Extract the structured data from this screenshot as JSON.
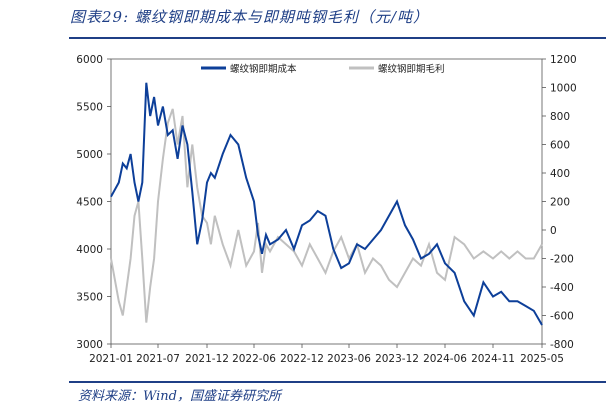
{
  "title": "图表29:  螺纹钢即期成本与即期吨钢毛利（元/吨）",
  "source": "资料来源：Wind，国盛证券研究所",
  "colors": {
    "accent": "#1f3f86",
    "cost": "#0d3f99",
    "margin": "#c0c0c0"
  },
  "chart_data": {
    "type": "line",
    "x_tick_labels": [
      "2021-01",
      "2021-07",
      "2021-12",
      "2022-06",
      "2022-12",
      "2023-06",
      "2023-12",
      "2024-06",
      "2024-11",
      "2025-05"
    ],
    "y_left": {
      "min": 3000,
      "max": 6000,
      "ticks": [
        3000,
        3500,
        4000,
        4500,
        5000,
        5500,
        6000
      ]
    },
    "y_right": {
      "min": -800,
      "max": 1200,
      "ticks": [
        -800,
        -600,
        -400,
        -200,
        0,
        200,
        400,
        600,
        800,
        1000,
        1200
      ]
    },
    "legend_position": "top",
    "series": [
      {
        "name": "螺纹钢即期成本",
        "axis": "left",
        "color": "#0d3f99",
        "points": [
          [
            "2021-01",
            4550
          ],
          [
            "2021-02",
            4700
          ],
          [
            "2021-02",
            4900
          ],
          [
            "2021-03",
            4850
          ],
          [
            "2021-03",
            5000
          ],
          [
            "2021-04",
            4700
          ],
          [
            "2021-04",
            4500
          ],
          [
            "2021-05",
            4700
          ],
          [
            "2021-05",
            5750
          ],
          [
            "2021-06",
            5400
          ],
          [
            "2021-06",
            5600
          ],
          [
            "2021-07",
            5300
          ],
          [
            "2021-07",
            5500
          ],
          [
            "2021-08",
            5200
          ],
          [
            "2021-08",
            5250
          ],
          [
            "2021-09",
            4950
          ],
          [
            "2021-09",
            5300
          ],
          [
            "2021-10",
            5100
          ],
          [
            "2021-10",
            4600
          ],
          [
            "2021-11",
            4050
          ],
          [
            "2021-11",
            4300
          ],
          [
            "2021-12",
            4700
          ],
          [
            "2021-12",
            4800
          ],
          [
            "2022-01",
            4750
          ],
          [
            "2022-02",
            5000
          ],
          [
            "2022-03",
            5200
          ],
          [
            "2022-04",
            5100
          ],
          [
            "2022-05",
            4750
          ],
          [
            "2022-06",
            4500
          ],
          [
            "2022-06",
            4150
          ],
          [
            "2022-07",
            3950
          ],
          [
            "2022-07",
            4150
          ],
          [
            "2022-08",
            4050
          ],
          [
            "2022-09",
            4100
          ],
          [
            "2022-10",
            4200
          ],
          [
            "2022-11",
            4000
          ],
          [
            "2022-12",
            4250
          ],
          [
            "2023-01",
            4300
          ],
          [
            "2023-02",
            4400
          ],
          [
            "2023-03",
            4350
          ],
          [
            "2023-04",
            4000
          ],
          [
            "2023-05",
            3800
          ],
          [
            "2023-06",
            3850
          ],
          [
            "2023-07",
            4050
          ],
          [
            "2023-08",
            4000
          ],
          [
            "2023-09",
            4100
          ],
          [
            "2023-10",
            4200
          ],
          [
            "2023-11",
            4350
          ],
          [
            "2023-12",
            4500
          ],
          [
            "2024-01",
            4250
          ],
          [
            "2024-02",
            4100
          ],
          [
            "2024-03",
            3900
          ],
          [
            "2024-04",
            3950
          ],
          [
            "2024-05",
            4050
          ],
          [
            "2024-06",
            3850
          ],
          [
            "2024-07",
            3750
          ],
          [
            "2024-08",
            3450
          ],
          [
            "2024-09",
            3300
          ],
          [
            "2024-10",
            3650
          ],
          [
            "2024-11",
            3500
          ],
          [
            "2024-12",
            3550
          ],
          [
            "2025-01",
            3450
          ],
          [
            "2025-02",
            3450
          ],
          [
            "2025-03",
            3400
          ],
          [
            "2025-04",
            3350
          ],
          [
            "2025-05",
            3200
          ]
        ]
      },
      {
        "name": "螺纹钢即期毛利",
        "axis": "right",
        "color": "#c0c0c0",
        "points": [
          [
            "2021-01",
            -200
          ],
          [
            "2021-02",
            -500
          ],
          [
            "2021-02",
            -600
          ],
          [
            "2021-03",
            -400
          ],
          [
            "2021-03",
            -200
          ],
          [
            "2021-04",
            100
          ],
          [
            "2021-04",
            200
          ],
          [
            "2021-05",
            -200
          ],
          [
            "2021-05",
            -650
          ],
          [
            "2021-06",
            -400
          ],
          [
            "2021-06",
            -200
          ],
          [
            "2021-07",
            200
          ],
          [
            "2021-07",
            500
          ],
          [
            "2021-08",
            750
          ],
          [
            "2021-08",
            850
          ],
          [
            "2021-09",
            600
          ],
          [
            "2021-09",
            800
          ],
          [
            "2021-10",
            300
          ],
          [
            "2021-10",
            600
          ],
          [
            "2021-11",
            300
          ],
          [
            "2021-11",
            100
          ],
          [
            "2021-12",
            50
          ],
          [
            "2021-12",
            -100
          ],
          [
            "2022-01",
            100
          ],
          [
            "2022-02",
            -100
          ],
          [
            "2022-03",
            -250
          ],
          [
            "2022-04",
            0
          ],
          [
            "2022-05",
            -250
          ],
          [
            "2022-06",
            -150
          ],
          [
            "2022-06",
            50
          ],
          [
            "2022-07",
            -300
          ],
          [
            "2022-07",
            -100
          ],
          [
            "2022-08",
            -150
          ],
          [
            "2022-09",
            -50
          ],
          [
            "2022-10",
            -100
          ],
          [
            "2022-11",
            -150
          ],
          [
            "2022-12",
            -250
          ],
          [
            "2023-01",
            -100
          ],
          [
            "2023-02",
            -200
          ],
          [
            "2023-03",
            -300
          ],
          [
            "2023-04",
            -150
          ],
          [
            "2023-05",
            -50
          ],
          [
            "2023-06",
            -200
          ],
          [
            "2023-07",
            -100
          ],
          [
            "2023-08",
            -300
          ],
          [
            "2023-09",
            -200
          ],
          [
            "2023-10",
            -250
          ],
          [
            "2023-11",
            -350
          ],
          [
            "2023-12",
            -400
          ],
          [
            "2024-01",
            -300
          ],
          [
            "2024-02",
            -200
          ],
          [
            "2024-03",
            -250
          ],
          [
            "2024-04",
            -100
          ],
          [
            "2024-05",
            -300
          ],
          [
            "2024-06",
            -350
          ],
          [
            "2024-07",
            -50
          ],
          [
            "2024-08",
            -100
          ],
          [
            "2024-09",
            -200
          ],
          [
            "2024-10",
            -150
          ],
          [
            "2024-11",
            -200
          ],
          [
            "2024-12",
            -150
          ],
          [
            "2025-01",
            -200
          ],
          [
            "2025-02",
            -150
          ],
          [
            "2025-03",
            -200
          ],
          [
            "2025-04",
            -200
          ],
          [
            "2025-05",
            -100
          ]
        ]
      }
    ]
  }
}
